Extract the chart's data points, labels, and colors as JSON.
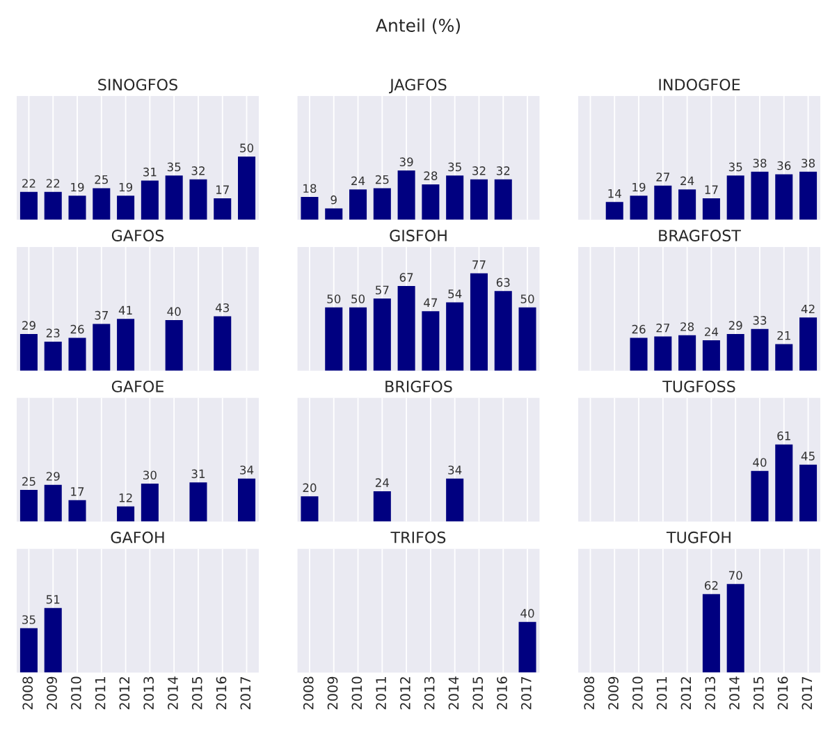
{
  "chart_data": [
    {
      "type": "bar",
      "title": "SINOGFOS",
      "annotations": [
        "Anteil (%)"
      ],
      "categories": [
        "2008",
        "2009",
        "2010",
        "2011",
        "2012",
        "2013",
        "2014",
        "2015",
        "2016",
        "2017"
      ],
      "values": [
        22,
        22,
        19,
        25,
        19,
        31,
        35,
        32,
        17,
        50
      ],
      "color": "#000080",
      "data_labels": true,
      "grid": "x",
      "tick_labels": false
    },
    {
      "type": "bar",
      "title": "JAGFOS",
      "categories": [
        "2008",
        "2009",
        "2010",
        "2011",
        "2012",
        "2013",
        "2014",
        "2015",
        "2016",
        "2017"
      ],
      "values": [
        18,
        9,
        24,
        25,
        39,
        28,
        35,
        32,
        32,
        null
      ],
      "color": "#000080",
      "data_labels": true,
      "grid": "x",
      "tick_labels": false
    },
    {
      "type": "bar",
      "title": "INDOGFOE",
      "categories": [
        "2008",
        "2009",
        "2010",
        "2011",
        "2012",
        "2013",
        "2014",
        "2015",
        "2016",
        "2017"
      ],
      "values": [
        null,
        14,
        19,
        27,
        24,
        17,
        35,
        38,
        36,
        38
      ],
      "color": "#000080",
      "data_labels": true,
      "grid": "x",
      "tick_labels": false
    },
    {
      "type": "bar",
      "title": "GAFOS",
      "categories": [
        "2008",
        "2009",
        "2010",
        "2011",
        "2012",
        "2013",
        "2014",
        "2015",
        "2016",
        "2017"
      ],
      "values": [
        29,
        23,
        26,
        37,
        41,
        null,
        40,
        null,
        43,
        null
      ],
      "color": "#000080",
      "data_labels": true,
      "grid": "x",
      "tick_labels": false
    },
    {
      "type": "bar",
      "title": "GISFOH",
      "categories": [
        "2008",
        "2009",
        "2010",
        "2011",
        "2012",
        "2013",
        "2014",
        "2015",
        "2016",
        "2017"
      ],
      "values": [
        null,
        50,
        50,
        57,
        67,
        47,
        54,
        77,
        63,
        50
      ],
      "color": "#000080",
      "data_labels": true,
      "grid": "x",
      "tick_labels": false
    },
    {
      "type": "bar",
      "title": "BRAGFOST",
      "categories": [
        "2008",
        "2009",
        "2010",
        "2011",
        "2012",
        "2013",
        "2014",
        "2015",
        "2016",
        "2017"
      ],
      "values": [
        null,
        null,
        26,
        27,
        28,
        24,
        29,
        33,
        21,
        42
      ],
      "color": "#000080",
      "data_labels": true,
      "grid": "x",
      "tick_labels": false
    },
    {
      "type": "bar",
      "title": "GAFOE",
      "categories": [
        "2008",
        "2009",
        "2010",
        "2011",
        "2012",
        "2013",
        "2014",
        "2015",
        "2016",
        "2017"
      ],
      "values": [
        25,
        29,
        17,
        null,
        12,
        30,
        null,
        31,
        null,
        34
      ],
      "color": "#000080",
      "data_labels": true,
      "grid": "x",
      "tick_labels": false
    },
    {
      "type": "bar",
      "title": "BRIGFOS",
      "categories": [
        "2008",
        "2009",
        "2010",
        "2011",
        "2012",
        "2013",
        "2014",
        "2015",
        "2016",
        "2017"
      ],
      "values": [
        20,
        null,
        null,
        24,
        null,
        null,
        34,
        null,
        null,
        null
      ],
      "color": "#000080",
      "data_labels": true,
      "grid": "x",
      "tick_labels": false
    },
    {
      "type": "bar",
      "title": "TUGFOSS",
      "categories": [
        "2008",
        "2009",
        "2010",
        "2011",
        "2012",
        "2013",
        "2014",
        "2015",
        "2016",
        "2017"
      ],
      "values": [
        null,
        null,
        null,
        null,
        null,
        null,
        null,
        40,
        61,
        45
      ],
      "color": "#000080",
      "data_labels": true,
      "grid": "x",
      "tick_labels": false
    },
    {
      "type": "bar",
      "title": "GAFOH",
      "categories": [
        "2008",
        "2009",
        "2010",
        "2011",
        "2012",
        "2013",
        "2014",
        "2015",
        "2016",
        "2017"
      ],
      "values": [
        35,
        51,
        null,
        null,
        null,
        null,
        null,
        null,
        null,
        null
      ],
      "color": "#000080",
      "data_labels": true,
      "grid": "x",
      "tick_labels": "x"
    },
    {
      "type": "bar",
      "title": "TRIFOS",
      "categories": [
        "2008",
        "2009",
        "2010",
        "2011",
        "2012",
        "2013",
        "2014",
        "2015",
        "2016",
        "2017"
      ],
      "values": [
        null,
        null,
        null,
        null,
        null,
        null,
        null,
        null,
        null,
        40
      ],
      "color": "#000080",
      "data_labels": true,
      "grid": "x",
      "tick_labels": "x"
    },
    {
      "type": "bar",
      "title": "TUGFOH",
      "categories": [
        "2008",
        "2009",
        "2010",
        "2011",
        "2012",
        "2013",
        "2014",
        "2015",
        "2016",
        "2017"
      ],
      "values": [
        null,
        null,
        null,
        null,
        null,
        62,
        70,
        null,
        null,
        null
      ],
      "color": "#000080",
      "data_labels": true,
      "grid": "x",
      "tick_labels": "x"
    }
  ]
}
